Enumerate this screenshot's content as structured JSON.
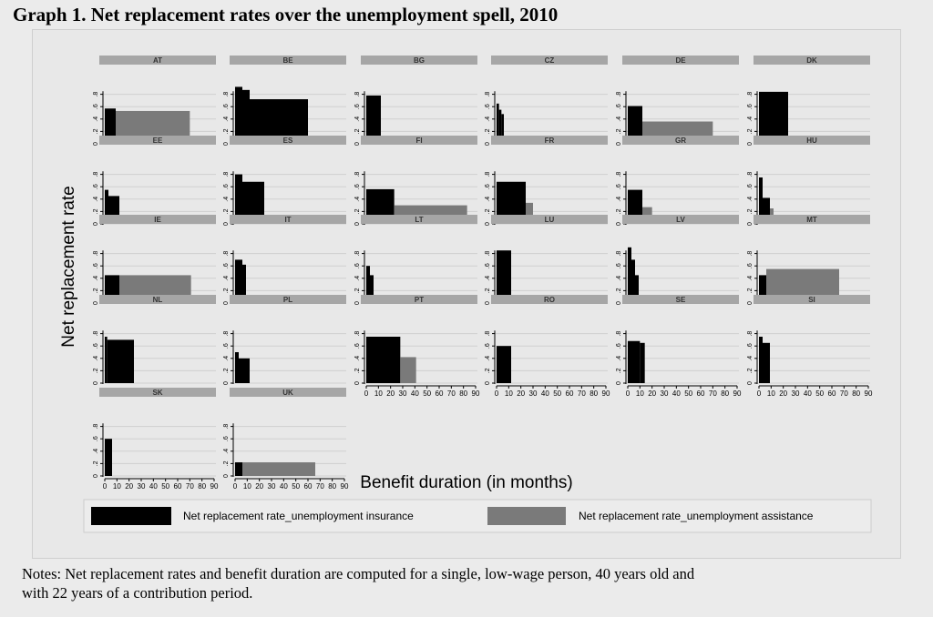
{
  "title": "Graph 1. Net replacement rates over the unemployment spell, 2010",
  "notes": "Notes: Net replacement rates and benefit duration are computed for a single, low-wage person, 40 years old and\nwith 22 years of a contribution period.",
  "chart_data": {
    "type": "bar",
    "ylabel": "Net replacement rate",
    "xlabel": "Benefit duration (in months)",
    "ylim": [
      0,
      1
    ],
    "yticks": [
      "0",
      ".2",
      ".4",
      ".6",
      ".8"
    ],
    "yticks_values": [
      0,
      0.2,
      0.4,
      0.6,
      0.8
    ],
    "xlim": [
      0,
      90
    ],
    "xticks": [
      "0",
      "10",
      "20",
      "30",
      "40",
      "50",
      "60",
      "70",
      "80",
      "90"
    ],
    "legend": [
      {
        "name": "Net replacement rate_unemployment insurance",
        "color": "#000000"
      },
      {
        "name": "Net replacement rate_unemployment assistance",
        "color": "#7a7a7a"
      }
    ],
    "colors": {
      "insurance": "#000000",
      "assistance": "#7a7a7a",
      "strip": "#a6a6a6",
      "grid": "#cfcfcf"
    },
    "panels": [
      {
        "country": "AT",
        "insurance": [
          [
            0,
            9,
            0.57
          ]
        ],
        "assistance": [
          [
            9,
            70,
            0.53
          ]
        ]
      },
      {
        "country": "BE",
        "insurance": [
          [
            0,
            6,
            0.92
          ],
          [
            6,
            12,
            0.87
          ],
          [
            12,
            60,
            0.72
          ]
        ],
        "assistance": []
      },
      {
        "country": "BG",
        "insurance": [
          [
            0,
            12,
            0.78
          ]
        ],
        "assistance": []
      },
      {
        "country": "CZ",
        "insurance": [
          [
            0,
            2,
            0.65
          ],
          [
            2,
            4,
            0.55
          ],
          [
            4,
            6,
            0.48
          ]
        ],
        "assistance": []
      },
      {
        "country": "DE",
        "insurance": [
          [
            0,
            12,
            0.61
          ]
        ],
        "assistance": [
          [
            12,
            70,
            0.36
          ]
        ]
      },
      {
        "country": "DK",
        "insurance": [
          [
            0,
            24,
            0.84
          ]
        ],
        "assistance": []
      },
      {
        "country": "EE",
        "insurance": [
          [
            0,
            3,
            0.55
          ],
          [
            3,
            12,
            0.45
          ]
        ],
        "assistance": []
      },
      {
        "country": "ES",
        "insurance": [
          [
            0,
            6,
            0.8
          ],
          [
            6,
            24,
            0.68
          ]
        ],
        "assistance": []
      },
      {
        "country": "FI",
        "insurance": [
          [
            0,
            23,
            0.56
          ]
        ],
        "assistance": [
          [
            23,
            83,
            0.3
          ]
        ]
      },
      {
        "country": "FR",
        "insurance": [
          [
            0,
            24,
            0.68
          ]
        ],
        "assistance": [
          [
            24,
            30,
            0.34
          ]
        ]
      },
      {
        "country": "GR",
        "insurance": [
          [
            0,
            12,
            0.55
          ]
        ],
        "assistance": [
          [
            12,
            20,
            0.27
          ]
        ]
      },
      {
        "country": "HU",
        "insurance": [
          [
            0,
            3,
            0.75
          ],
          [
            3,
            9,
            0.42
          ]
        ],
        "assistance": [
          [
            9,
            12,
            0.25
          ]
        ]
      },
      {
        "country": "IE",
        "insurance": [
          [
            0,
            12,
            0.45
          ]
        ],
        "assistance": [
          [
            12,
            71,
            0.45
          ]
        ]
      },
      {
        "country": "IT",
        "insurance": [
          [
            0,
            6,
            0.7
          ],
          [
            6,
            9,
            0.62
          ]
        ],
        "assistance": []
      },
      {
        "country": "LT",
        "insurance": [
          [
            0,
            3,
            0.6
          ],
          [
            3,
            6,
            0.45
          ]
        ],
        "assistance": []
      },
      {
        "country": "LU",
        "insurance": [
          [
            0,
            12,
            0.85
          ]
        ],
        "assistance": []
      },
      {
        "country": "LV",
        "insurance": [
          [
            0,
            3,
            0.9
          ],
          [
            3,
            6,
            0.7
          ],
          [
            6,
            9,
            0.45
          ]
        ],
        "assistance": []
      },
      {
        "country": "MT",
        "insurance": [
          [
            0,
            6,
            0.45
          ]
        ],
        "assistance": [
          [
            6,
            66,
            0.55
          ]
        ]
      },
      {
        "country": "NL",
        "insurance": [
          [
            0,
            2,
            0.75
          ],
          [
            2,
            24,
            0.7
          ]
        ],
        "assistance": []
      },
      {
        "country": "PL",
        "insurance": [
          [
            0,
            3,
            0.5
          ],
          [
            3,
            12,
            0.4
          ]
        ],
        "assistance": []
      },
      {
        "country": "PT",
        "insurance": [
          [
            0,
            28,
            0.75
          ]
        ],
        "assistance": [
          [
            28,
            41,
            0.42
          ]
        ]
      },
      {
        "country": "RO",
        "insurance": [
          [
            0,
            12,
            0.6
          ]
        ],
        "assistance": []
      },
      {
        "country": "SE",
        "insurance": [
          [
            0,
            10,
            0.68
          ],
          [
            10,
            14,
            0.65
          ]
        ],
        "assistance": []
      },
      {
        "country": "SI",
        "insurance": [
          [
            0,
            3,
            0.75
          ],
          [
            3,
            9,
            0.65
          ]
        ],
        "assistance": []
      },
      {
        "country": "SK",
        "insurance": [
          [
            0,
            6,
            0.6
          ]
        ],
        "assistance": []
      },
      {
        "country": "UK",
        "insurance": [
          [
            0,
            6,
            0.22
          ]
        ],
        "assistance": [
          [
            6,
            66,
            0.22
          ]
        ]
      }
    ]
  }
}
